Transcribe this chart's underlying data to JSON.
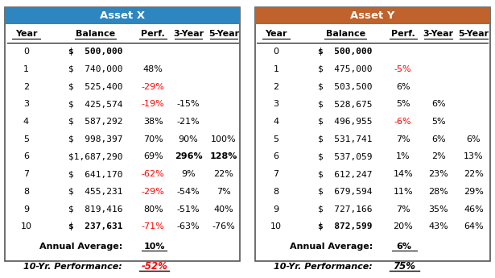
{
  "asset_x": {
    "title": "Asset X",
    "header_color": "#2E86C1",
    "years": [
      0,
      1,
      2,
      3,
      4,
      5,
      6,
      7,
      8,
      9,
      10
    ],
    "balances": [
      "$  500,000",
      "$  740,000",
      "$  525,400",
      "$  425,574",
      "$  587,292",
      "$  998,397",
      "$1,687,290",
      "$  641,170",
      "$  455,231",
      "$  819,416",
      "$  237,631"
    ],
    "balance_bold": [
      true,
      false,
      false,
      false,
      false,
      false,
      false,
      false,
      false,
      false,
      true
    ],
    "perf": [
      "",
      "48%",
      "-29%",
      "-19%",
      "38%",
      "70%",
      "69%",
      "-62%",
      "-29%",
      "80%",
      "-71%"
    ],
    "perf_color": [
      "black",
      "black",
      "red",
      "red",
      "black",
      "black",
      "black",
      "red",
      "red",
      "black",
      "red"
    ],
    "three_year": [
      "",
      "",
      "",
      "-15%",
      "-21%",
      "90%",
      "296%",
      "9%",
      "-54%",
      "-51%",
      "-63%"
    ],
    "three_year_bold": [
      false,
      false,
      false,
      false,
      false,
      false,
      true,
      false,
      false,
      false,
      false
    ],
    "five_year": [
      "",
      "",
      "",
      "",
      "",
      "100%",
      "128%",
      "22%",
      "7%",
      "40%",
      "-76%"
    ],
    "five_year_bold": [
      false,
      false,
      false,
      false,
      false,
      false,
      true,
      false,
      false,
      false,
      false
    ],
    "annual_avg": "10%",
    "ten_yr_perf": "-52%",
    "ten_yr_color": "red"
  },
  "asset_y": {
    "title": "Asset Y",
    "header_color": "#C0622B",
    "years": [
      0,
      1,
      2,
      3,
      4,
      5,
      6,
      7,
      8,
      9,
      10
    ],
    "balances": [
      "$  500,000",
      "$  475,000",
      "$  503,500",
      "$  528,675",
      "$  496,955",
      "$  531,741",
      "$  537,059",
      "$  612,247",
      "$  679,594",
      "$  727,166",
      "$  872,599"
    ],
    "balance_bold": [
      true,
      false,
      false,
      false,
      false,
      false,
      false,
      false,
      false,
      false,
      true
    ],
    "perf": [
      "",
      "-5%",
      "6%",
      "5%",
      "-6%",
      "7%",
      "1%",
      "14%",
      "11%",
      "7%",
      "20%"
    ],
    "perf_color": [
      "black",
      "red",
      "black",
      "black",
      "red",
      "black",
      "black",
      "black",
      "black",
      "black",
      "black"
    ],
    "three_year": [
      "",
      "",
      "",
      "6%",
      "5%",
      "6%",
      "2%",
      "23%",
      "28%",
      "35%",
      "43%"
    ],
    "three_year_bold": [
      false,
      false,
      false,
      false,
      false,
      false,
      false,
      false,
      false,
      false,
      false
    ],
    "five_year": [
      "",
      "",
      "",
      "",
      "",
      "6%",
      "13%",
      "22%",
      "29%",
      "46%",
      "64%"
    ],
    "five_year_bold": [
      false,
      false,
      false,
      false,
      false,
      false,
      false,
      false,
      false,
      false,
      false
    ],
    "annual_avg": "6%",
    "ten_yr_perf": "75%",
    "ten_yr_color": "black"
  },
  "col_headers": [
    "Year",
    "Balance",
    "Perf.",
    "3-Year",
    "5-Year"
  ],
  "bg_color": "#FFFFFF",
  "header_text_color": "#FFFFFF",
  "font_size": 8.0
}
